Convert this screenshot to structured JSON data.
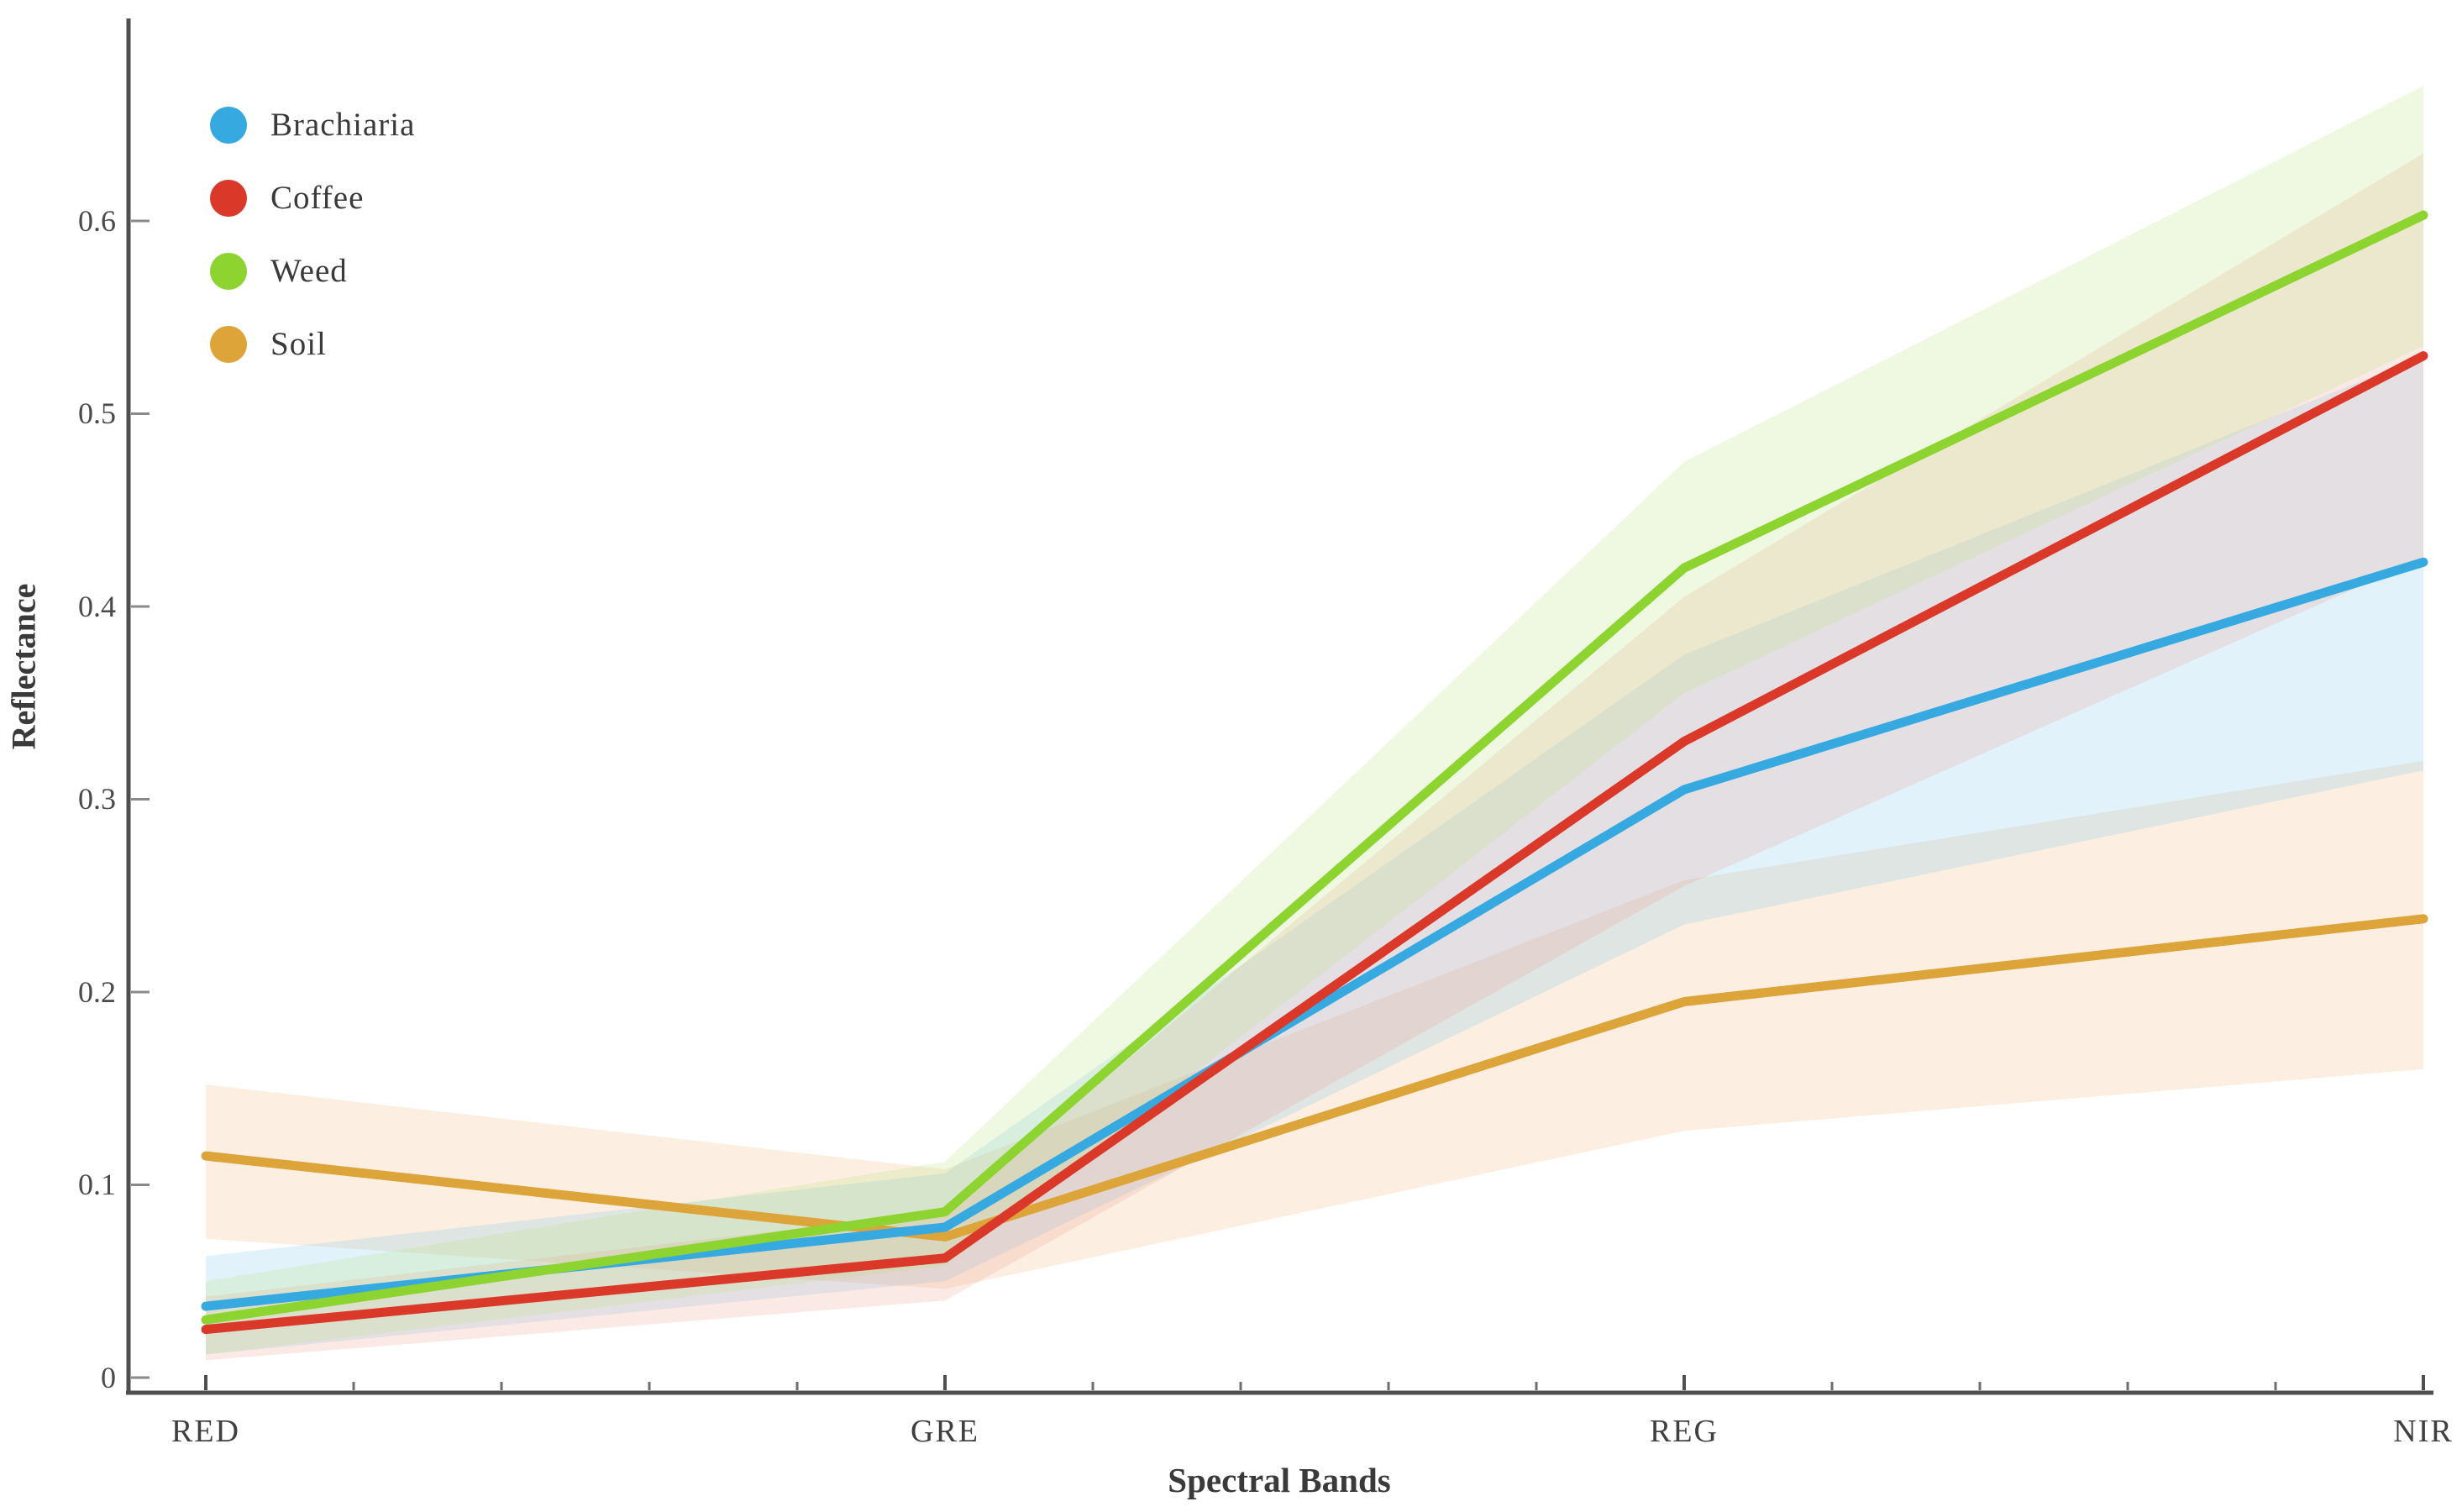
{
  "chart_data": {
    "type": "line",
    "title": "",
    "xlabel": "Spectral Bands",
    "ylabel": "Reflectance",
    "categories": [
      "RED",
      "GRE",
      "REG",
      "NIR"
    ],
    "y_ticks": [
      "0",
      "0.1",
      "0.2",
      "0.3",
      "0.4",
      "0.5",
      "0.6"
    ],
    "ylim": [
      0,
      0.7
    ],
    "grid": false,
    "legend_position": "top-left",
    "series": [
      {
        "name": "Brachiaria",
        "color": "#36a9e1",
        "band_color": "#79c4ec",
        "values": [
          0.037,
          0.078,
          0.305,
          0.423
        ],
        "band_lower": [
          0.012,
          0.05,
          0.235,
          0.315
        ],
        "band_upper": [
          0.063,
          0.106,
          0.375,
          0.53
        ]
      },
      {
        "name": "Coffee",
        "color": "#da392a",
        "band_color": "#ee9a8c",
        "values": [
          0.025,
          0.062,
          0.33,
          0.53
        ],
        "band_lower": [
          0.009,
          0.04,
          0.255,
          0.425
        ],
        "band_upper": [
          0.042,
          0.086,
          0.405,
          0.635
        ]
      },
      {
        "name": "Weed",
        "color": "#8dd431",
        "band_color": "#b5e57c",
        "values": [
          0.03,
          0.086,
          0.42,
          0.603
        ],
        "band_lower": [
          0.012,
          0.058,
          0.355,
          0.535
        ],
        "band_upper": [
          0.05,
          0.112,
          0.475,
          0.67
        ]
      },
      {
        "name": "Soil",
        "color": "#dca439",
        "band_color": "#f0b875",
        "values": [
          0.115,
          0.073,
          0.195,
          0.238
        ],
        "band_lower": [
          0.072,
          0.046,
          0.128,
          0.16
        ],
        "band_upper": [
          0.152,
          0.108,
          0.258,
          0.32
        ]
      }
    ]
  }
}
